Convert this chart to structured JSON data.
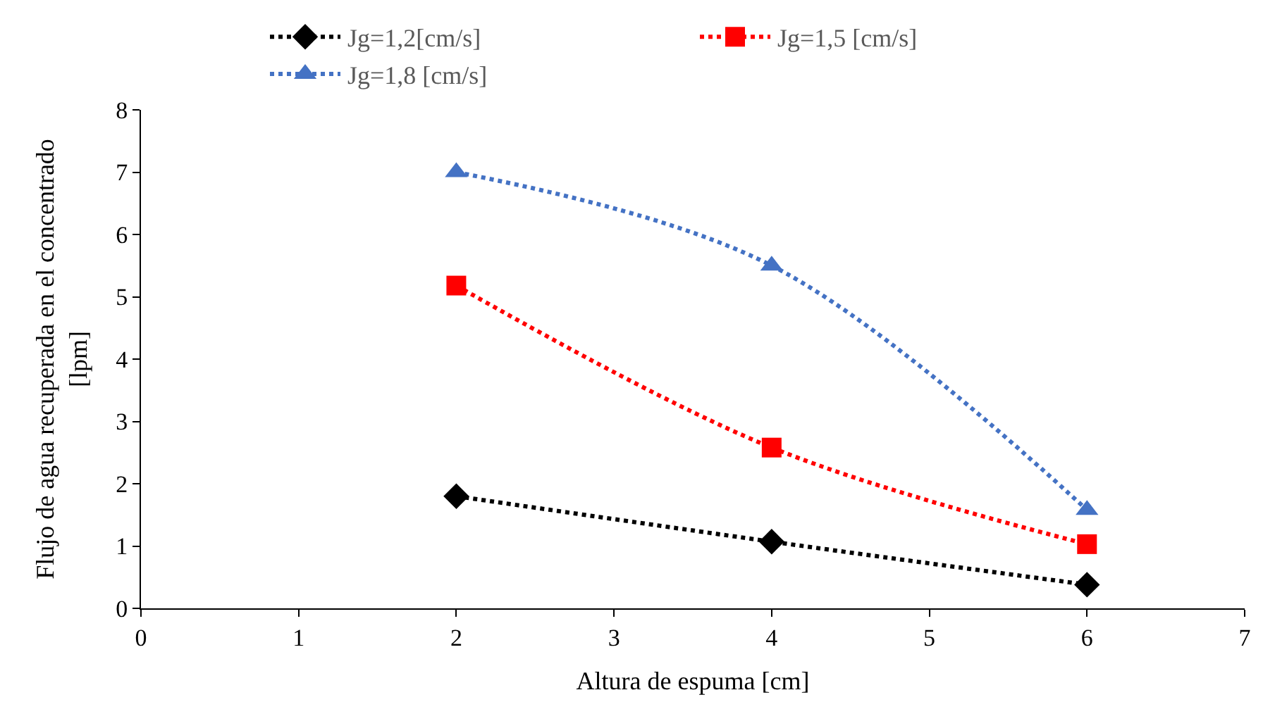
{
  "chart_data": {
    "type": "line",
    "xlabel": "Altura de espuma [cm]",
    "ylabel": "Flujo de agua recuperada en el concentrado\n[lpm]",
    "x": [
      2,
      4,
      6
    ],
    "series": [
      {
        "name": "Jg=1,2[cm/s]",
        "color": "#000000",
        "marker": "diamond",
        "values": [
          1.8,
          1.07,
          0.38
        ]
      },
      {
        "name": "Jg=1,5 [cm/s]",
        "color": "#ff0000",
        "marker": "square",
        "values": [
          5.18,
          2.58,
          1.03
        ]
      },
      {
        "name": "Jg=1,8 [cm/s]",
        "color": "#4472c4",
        "marker": "triangle",
        "values": [
          7.0,
          5.5,
          1.58
        ]
      }
    ],
    "xlim": [
      0,
      7
    ],
    "xticks": [
      0,
      1,
      2,
      3,
      4,
      5,
      6,
      7
    ],
    "ylim": [
      0,
      8
    ],
    "yticks": [
      0,
      1,
      2,
      3,
      4,
      5,
      6,
      7,
      8
    ],
    "legend": "top",
    "line_style": "dotted"
  }
}
